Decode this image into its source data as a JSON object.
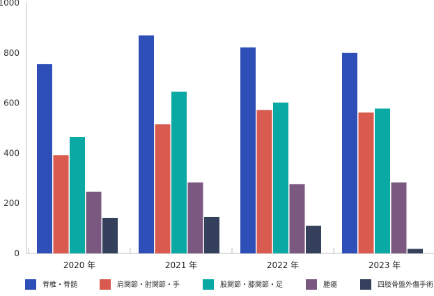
{
  "chart_data": {
    "type": "bar",
    "categories": [
      "2020 年",
      "2021 年",
      "2022 年",
      "2023 年"
    ],
    "ylim": [
      0,
      1000
    ],
    "yticks": [
      0,
      200,
      400,
      600,
      800,
      1000
    ],
    "legend_position": "bottom",
    "grid": false,
    "series": [
      {
        "name": "脊椎・脊髄",
        "color": "#2E4FB8",
        "values": [
          755,
          870,
          822,
          800
        ]
      },
      {
        "name": "肩関節・肘関節・手",
        "color": "#D95B50",
        "values": [
          392,
          515,
          572,
          562
        ]
      },
      {
        "name": "股関節・膝関節・足",
        "color": "#0AA9A4",
        "values": [
          465,
          645,
          602,
          578
        ]
      },
      {
        "name": "腫瘍",
        "color": "#7B5880",
        "values": [
          246,
          283,
          276,
          283
        ]
      },
      {
        "name": "四肢骨盤外傷手術",
        "color": "#34405C",
        "values": [
          142,
          145,
          110,
          18
        ]
      }
    ]
  }
}
